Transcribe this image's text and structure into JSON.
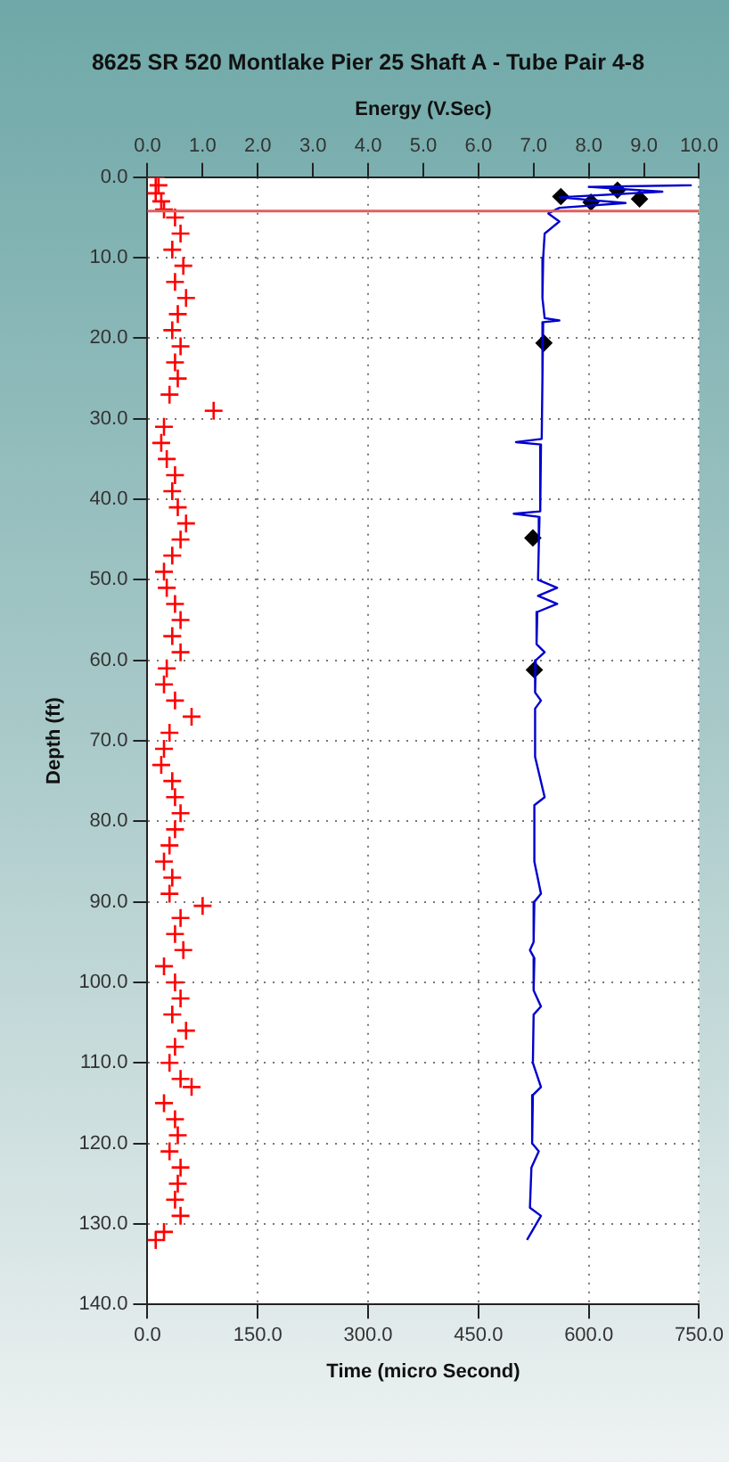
{
  "chart_data": {
    "type": "scatter",
    "title": "8625 SR 520 Montlake Pier 25 Shaft A - Tube Pair 4-8",
    "xlabel": "Time (micro Second)",
    "x2label": "Energy (V.Sec)",
    "ylabel": "Depth (ft)",
    "xlim": [
      0,
      750
    ],
    "xticks": [
      {
        "value": 0,
        "label": "0.0"
      },
      {
        "value": 150,
        "label": "150.0"
      },
      {
        "value": 300,
        "label": "300.0"
      },
      {
        "value": 450,
        "label": "450.0"
      },
      {
        "value": 600,
        "label": "600.0"
      },
      {
        "value": 750,
        "label": "750.0"
      }
    ],
    "x2lim": [
      0,
      10
    ],
    "x2ticks": [
      {
        "value": 0,
        "label": "0.0"
      },
      {
        "value": 1,
        "label": "1.0"
      },
      {
        "value": 2,
        "label": "2.0"
      },
      {
        "value": 3,
        "label": "3.0"
      },
      {
        "value": 4,
        "label": "4.0"
      },
      {
        "value": 5,
        "label": "5.0"
      },
      {
        "value": 6,
        "label": "6.0"
      },
      {
        "value": 7,
        "label": "7.0"
      },
      {
        "value": 8,
        "label": "8.0"
      },
      {
        "value": 9,
        "label": "9.0"
      },
      {
        "value": 10,
        "label": "10.0"
      }
    ],
    "ylim": [
      140,
      0
    ],
    "yticks": [
      {
        "value": 0,
        "label": "0.0"
      },
      {
        "value": 10,
        "label": "10.0"
      },
      {
        "value": 20,
        "label": "20.0"
      },
      {
        "value": 30,
        "label": "30.0"
      },
      {
        "value": 40,
        "label": "40.0"
      },
      {
        "value": 50,
        "label": "50.0"
      },
      {
        "value": 60,
        "label": "60.0"
      },
      {
        "value": 70,
        "label": "70.0"
      },
      {
        "value": 80,
        "label": "80.0"
      },
      {
        "value": 90,
        "label": "90.0"
      },
      {
        "value": 100,
        "label": "100.0"
      },
      {
        "value": 110,
        "label": "110.0"
      },
      {
        "value": 120,
        "label": "120.0"
      },
      {
        "value": 130,
        "label": "130.0"
      },
      {
        "value": 140,
        "label": "140.0"
      }
    ],
    "grid": true,
    "series": [
      {
        "type": "scatter",
        "color": "#ff0000",
        "marker": "cross",
        "axis": "x2",
        "x": [
          0.15,
          0.2,
          0.15,
          0.25,
          0.3,
          0.5,
          0.6,
          0.45,
          0.65,
          0.5,
          0.7,
          0.55,
          0.45,
          0.6,
          0.5,
          0.55,
          0.4,
          1.2,
          0.3,
          0.25,
          0.35,
          0.5,
          0.45,
          0.55,
          0.7,
          0.6,
          0.45,
          0.3,
          0.35,
          0.5,
          0.6,
          0.45,
          0.6,
          0.35,
          0.3,
          0.5,
          0.8,
          0.4,
          0.3,
          0.25,
          0.45,
          0.5,
          0.6,
          0.5,
          0.4,
          0.3,
          0.45,
          0.4,
          1.0,
          0.6,
          0.5,
          0.65,
          0.3,
          0.5,
          0.6,
          0.45,
          0.7,
          0.5,
          0.4,
          0.6,
          0.8,
          0.3,
          0.5,
          0.55,
          0.4,
          0.6,
          0.55,
          0.5,
          0.6,
          0.3,
          0.15
        ],
        "values": [
          0,
          1,
          2,
          3,
          4,
          5,
          7,
          9,
          11,
          13,
          15,
          17,
          19,
          21,
          23,
          25,
          27,
          29,
          31,
          33,
          35,
          37,
          39,
          41,
          43,
          45,
          47,
          49,
          51,
          53,
          55,
          57,
          59,
          61,
          63,
          65,
          67,
          69,
          71,
          73,
          75,
          77,
          79,
          81,
          83,
          85,
          87,
          89,
          90.5,
          92,
          94,
          96,
          98,
          100,
          102,
          104,
          106,
          108,
          110,
          112,
          113,
          115,
          117,
          119,
          121,
          123,
          125,
          127,
          129,
          131,
          132
        ]
      },
      {
        "type": "line",
        "color": "#0000cc",
        "marker": "none",
        "x": [
          740,
          600,
          700,
          560,
          650,
          560,
          545,
          560,
          540,
          538,
          537,
          540,
          560,
          538,
          537,
          536,
          501,
          535,
          534,
          498,
          533,
          532,
          531,
          557,
          531,
          557,
          530,
          529,
          540,
          528,
          527,
          535,
          527,
          527,
          540,
          526,
          526,
          535,
          526,
          525,
          520,
          526,
          525,
          535,
          525,
          524,
          535,
          524,
          523,
          532,
          522,
          520,
          535,
          516
        ],
        "values": [
          1,
          1.2,
          1.8,
          2.5,
          3.2,
          3.8,
          4.5,
          5.5,
          7,
          10,
          15,
          17.5,
          17.8,
          18,
          25,
          32.5,
          32.9,
          33.2,
          41.5,
          41.8,
          42.2,
          46,
          50,
          51,
          52,
          53,
          54,
          58,
          59,
          60,
          64,
          65,
          66,
          72,
          77,
          78,
          85,
          89,
          90,
          95,
          96,
          97,
          101,
          103,
          104,
          110,
          113,
          114,
          120,
          121,
          123,
          128,
          129,
          132
        ]
      },
      {
        "type": "scatter",
        "color": "#000000",
        "marker": "diamond",
        "x": [
          562,
          603,
          639,
          669,
          539,
          524,
          526
        ],
        "values": [
          2.4,
          3.1,
          1.6,
          2.7,
          20.6,
          44.8,
          61.2
        ]
      }
    ],
    "ref_lines": [
      {
        "axis": "y",
        "value": 4.2,
        "color": "#e06060"
      }
    ]
  }
}
